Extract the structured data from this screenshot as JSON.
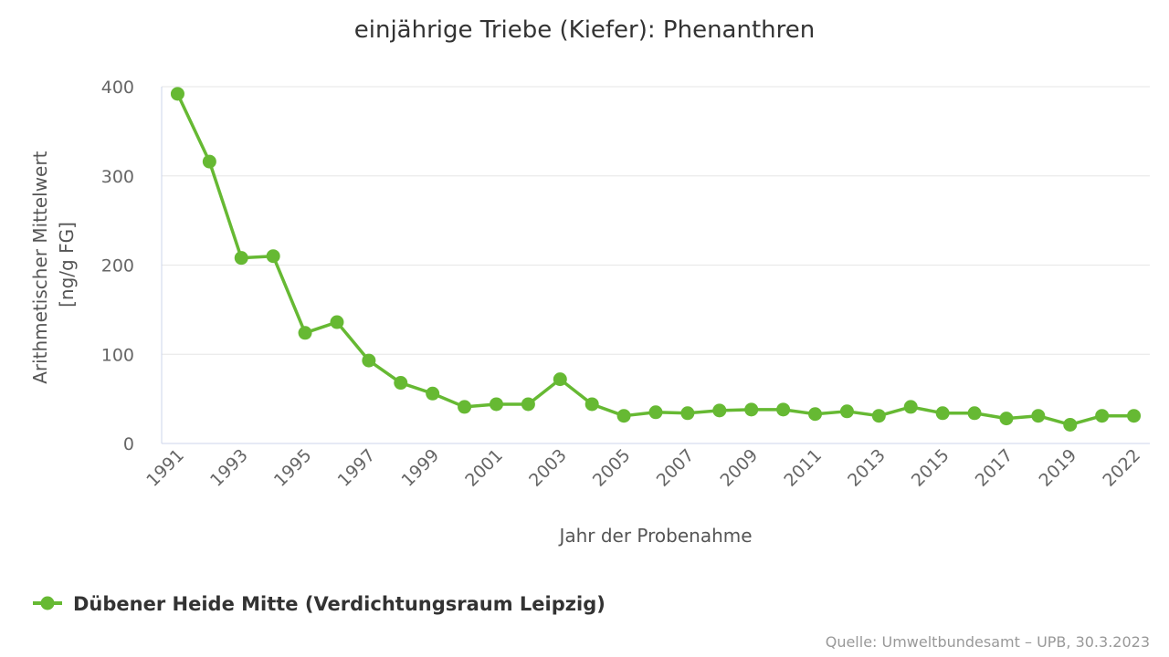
{
  "chart_data": {
    "type": "line",
    "title": "einjährige Triebe (Kiefer): Phenanthren",
    "xlabel": "Jahr der Probenahme",
    "ylabel_lines": [
      "Arithmetischer Mittelwert",
      "[ng/g FG]"
    ],
    "ylim": [
      0,
      400
    ],
    "yticks": [
      0,
      100,
      200,
      300,
      400
    ],
    "xticks": [
      "1991",
      "1993",
      "1995",
      "1997",
      "1999",
      "2001",
      "2003",
      "2005",
      "2007",
      "2009",
      "2011",
      "2013",
      "2015",
      "2017",
      "2019",
      "2022"
    ],
    "categories": [
      "1991",
      "1992",
      "1993",
      "1994",
      "1995",
      "1996",
      "1997",
      "1998",
      "1999",
      "2000",
      "2001",
      "2002",
      "2003",
      "2004",
      "2005",
      "2006",
      "2007",
      "2008",
      "2009",
      "2010",
      "2011",
      "2012",
      "2013",
      "2014",
      "2015",
      "2016",
      "2017",
      "2018",
      "2019",
      "2020",
      "2022"
    ],
    "series": [
      {
        "name": "Dübener Heide Mitte (Verdichtungsraum Leipzig)",
        "color": "#66b933",
        "values": [
          392,
          316,
          208,
          210,
          124,
          136,
          93,
          68,
          56,
          41,
          44,
          44,
          72,
          44,
          31,
          35,
          34,
          37,
          38,
          38,
          33,
          36,
          31,
          41,
          34,
          34,
          28,
          31,
          21,
          31,
          31
        ]
      }
    ],
    "grid": true,
    "legend_position": "bottom-left"
  },
  "credit": "Quelle: Umweltbundesamt – UPB, 30.3.2023"
}
